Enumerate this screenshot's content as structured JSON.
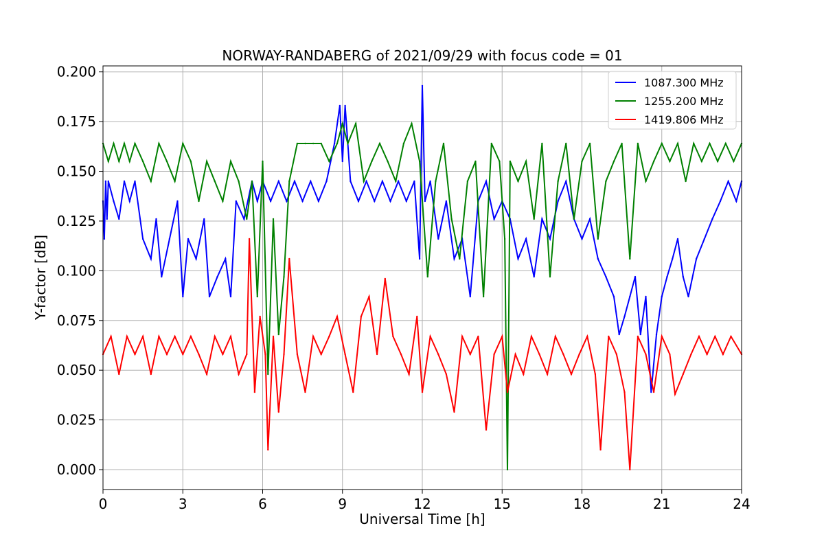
{
  "chart_data": {
    "type": "line",
    "title": "NORWAY-RANDABERG of 2021/09/29 with focus code = 01",
    "xlabel": "Universal Time [h]",
    "ylabel": "Y-factor [dB]",
    "xlim": [
      0,
      24
    ],
    "ylim": [
      -0.01,
      0.203
    ],
    "xticks": [
      0,
      3,
      6,
      9,
      12,
      15,
      18,
      21,
      24
    ],
    "xtick_labels": [
      "0",
      "3",
      "6",
      "9",
      "12",
      "15",
      "18",
      "21",
      "24"
    ],
    "yticks": [
      0.0,
      0.025,
      0.05,
      0.075,
      0.1,
      0.125,
      0.15,
      0.175,
      0.2
    ],
    "ytick_labels": [
      "0.000",
      "0.025",
      "0.050",
      "0.075",
      "0.100",
      "0.125",
      "0.150",
      "0.175",
      "0.200"
    ],
    "grid": true,
    "legend_position": "top-right",
    "series": [
      {
        "name": "1087.300 MHz",
        "color": "#0000ff",
        "x": [
          0.0,
          0.05,
          0.1,
          0.15,
          0.2,
          0.4,
          0.6,
          0.8,
          1.0,
          1.2,
          1.5,
          1.8,
          2.0,
          2.2,
          2.5,
          2.8,
          3.0,
          3.2,
          3.5,
          3.8,
          4.0,
          4.3,
          4.6,
          4.8,
          5.0,
          5.3,
          5.6,
          5.8,
          6.0,
          6.3,
          6.6,
          6.9,
          7.2,
          7.5,
          7.8,
          8.1,
          8.4,
          8.7,
          8.9,
          9.0,
          9.1,
          9.3,
          9.6,
          9.9,
          10.2,
          10.5,
          10.8,
          11.1,
          11.4,
          11.7,
          11.9,
          12.0,
          12.1,
          12.3,
          12.6,
          12.9,
          13.2,
          13.5,
          13.8,
          14.1,
          14.4,
          14.7,
          15.0,
          15.3,
          15.6,
          15.9,
          16.2,
          16.5,
          16.8,
          17.1,
          17.4,
          17.7,
          18.0,
          18.3,
          18.6,
          18.9,
          19.2,
          19.4,
          19.6,
          19.8,
          20.0,
          20.2,
          20.4,
          20.6,
          20.8,
          21.0,
          21.2,
          21.4,
          21.6,
          21.8,
          22.0,
          22.3,
          22.6,
          22.9,
          23.2,
          23.5,
          23.8,
          24.0
        ],
        "values": [
          0.135,
          0.116,
          0.145,
          0.126,
          0.145,
          0.135,
          0.126,
          0.145,
          0.135,
          0.145,
          0.116,
          0.106,
          0.126,
          0.097,
          0.116,
          0.135,
          0.087,
          0.116,
          0.106,
          0.126,
          0.087,
          0.097,
          0.106,
          0.087,
          0.135,
          0.126,
          0.145,
          0.135,
          0.145,
          0.135,
          0.145,
          0.135,
          0.145,
          0.135,
          0.145,
          0.135,
          0.145,
          0.164,
          0.183,
          0.155,
          0.183,
          0.145,
          0.135,
          0.145,
          0.135,
          0.145,
          0.135,
          0.145,
          0.135,
          0.145,
          0.106,
          0.193,
          0.135,
          0.145,
          0.116,
          0.135,
          0.106,
          0.116,
          0.087,
          0.135,
          0.145,
          0.126,
          0.135,
          0.126,
          0.106,
          0.116,
          0.097,
          0.126,
          0.116,
          0.135,
          0.145,
          0.126,
          0.116,
          0.126,
          0.106,
          0.097,
          0.087,
          0.068,
          0.077,
          0.087,
          0.097,
          0.068,
          0.087,
          0.039,
          0.068,
          0.087,
          0.097,
          0.106,
          0.116,
          0.097,
          0.087,
          0.106,
          0.116,
          0.126,
          0.135,
          0.145,
          0.135,
          0.145
        ]
      },
      {
        "name": "1255.200 MHz",
        "color": "#008000",
        "x": [
          0.0,
          0.2,
          0.4,
          0.6,
          0.8,
          1.0,
          1.2,
          1.5,
          1.8,
          2.1,
          2.4,
          2.7,
          3.0,
          3.3,
          3.6,
          3.9,
          4.2,
          4.5,
          4.8,
          5.1,
          5.4,
          5.6,
          5.8,
          6.0,
          6.2,
          6.4,
          6.6,
          6.8,
          7.0,
          7.3,
          7.6,
          7.9,
          8.2,
          8.5,
          8.8,
          9.0,
          9.2,
          9.5,
          9.8,
          10.1,
          10.4,
          10.7,
          11.0,
          11.3,
          11.6,
          11.9,
          12.2,
          12.5,
          12.8,
          13.1,
          13.4,
          13.7,
          14.0,
          14.3,
          14.6,
          14.9,
          15.1,
          15.2,
          15.3,
          15.6,
          15.9,
          16.2,
          16.5,
          16.8,
          17.1,
          17.4,
          17.7,
          18.0,
          18.3,
          18.6,
          18.9,
          19.2,
          19.5,
          19.8,
          20.1,
          20.4,
          20.7,
          21.0,
          21.3,
          21.6,
          21.9,
          22.2,
          22.5,
          22.8,
          23.1,
          23.4,
          23.7,
          24.0
        ],
        "values": [
          0.164,
          0.155,
          0.164,
          0.155,
          0.164,
          0.155,
          0.164,
          0.155,
          0.145,
          0.164,
          0.155,
          0.145,
          0.164,
          0.155,
          0.135,
          0.155,
          0.145,
          0.135,
          0.155,
          0.145,
          0.126,
          0.145,
          0.087,
          0.155,
          0.048,
          0.126,
          0.068,
          0.097,
          0.145,
          0.164,
          0.164,
          0.164,
          0.164,
          0.155,
          0.164,
          0.174,
          0.164,
          0.174,
          0.145,
          0.155,
          0.164,
          0.155,
          0.145,
          0.164,
          0.174,
          0.155,
          0.097,
          0.145,
          0.164,
          0.126,
          0.106,
          0.145,
          0.155,
          0.087,
          0.164,
          0.155,
          0.116,
          0.0,
          0.155,
          0.145,
          0.155,
          0.126,
          0.164,
          0.097,
          0.145,
          0.164,
          0.126,
          0.155,
          0.164,
          0.116,
          0.145,
          0.155,
          0.164,
          0.106,
          0.164,
          0.145,
          0.155,
          0.164,
          0.155,
          0.164,
          0.145,
          0.164,
          0.155,
          0.164,
          0.155,
          0.164,
          0.155,
          0.164
        ]
      },
      {
        "name": "1419.806 MHz",
        "color": "#ff0000",
        "x": [
          0.0,
          0.3,
          0.6,
          0.9,
          1.2,
          1.5,
          1.8,
          2.1,
          2.4,
          2.7,
          3.0,
          3.3,
          3.6,
          3.9,
          4.2,
          4.5,
          4.8,
          5.1,
          5.4,
          5.5,
          5.7,
          5.9,
          6.1,
          6.2,
          6.4,
          6.6,
          6.8,
          7.0,
          7.3,
          7.6,
          7.9,
          8.2,
          8.5,
          8.8,
          9.1,
          9.4,
          9.7,
          10.0,
          10.3,
          10.6,
          10.9,
          11.2,
          11.5,
          11.8,
          12.0,
          12.3,
          12.6,
          12.9,
          13.2,
          13.5,
          13.8,
          14.1,
          14.4,
          14.7,
          15.0,
          15.2,
          15.5,
          15.8,
          16.1,
          16.4,
          16.7,
          17.0,
          17.3,
          17.6,
          17.9,
          18.2,
          18.5,
          18.7,
          19.0,
          19.3,
          19.6,
          19.8,
          20.1,
          20.4,
          20.7,
          21.0,
          21.3,
          21.5,
          21.8,
          22.1,
          22.4,
          22.7,
          23.0,
          23.3,
          23.6,
          24.0
        ],
        "values": [
          0.058,
          0.067,
          0.048,
          0.067,
          0.058,
          0.067,
          0.048,
          0.067,
          0.058,
          0.067,
          0.058,
          0.067,
          0.058,
          0.048,
          0.067,
          0.058,
          0.067,
          0.048,
          0.058,
          0.116,
          0.039,
          0.077,
          0.058,
          0.01,
          0.067,
          0.029,
          0.058,
          0.106,
          0.058,
          0.039,
          0.067,
          0.058,
          0.067,
          0.077,
          0.058,
          0.039,
          0.077,
          0.087,
          0.058,
          0.096,
          0.067,
          0.058,
          0.048,
          0.077,
          0.039,
          0.067,
          0.058,
          0.048,
          0.029,
          0.067,
          0.058,
          0.067,
          0.02,
          0.058,
          0.067,
          0.039,
          0.058,
          0.048,
          0.067,
          0.058,
          0.048,
          0.067,
          0.058,
          0.048,
          0.058,
          0.067,
          0.048,
          0.01,
          0.067,
          0.058,
          0.039,
          0.0,
          0.067,
          0.058,
          0.039,
          0.067,
          0.058,
          0.038,
          0.048,
          0.058,
          0.067,
          0.058,
          0.067,
          0.058,
          0.067,
          0.058
        ]
      }
    ]
  }
}
